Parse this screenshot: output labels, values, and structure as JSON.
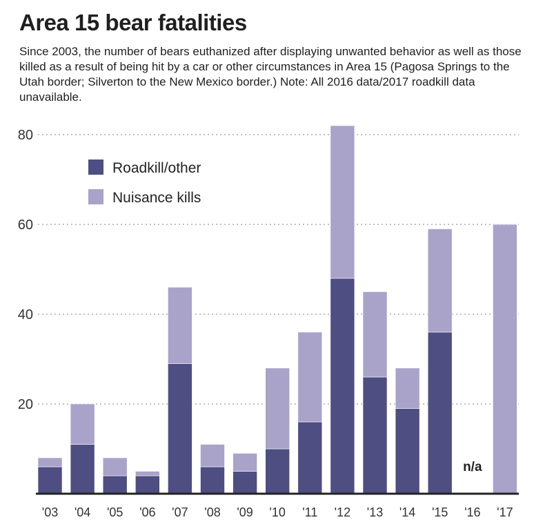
{
  "title": "Area 15 bear fatalities",
  "subtitle": "Since 2003, the number of bears euthanized after displaying unwanted behavior as well as those killed as a result of being hit by a car or other circumstances in Area 15 (Pagosa Springs to the Utah border; Silverton to the New Mexico border.) Note: All 2016 data/2017 roadkill data unavailable.",
  "chart_data": {
    "type": "bar",
    "stacked": true,
    "categories": [
      "'03",
      "'04",
      "'05",
      "'06",
      "'07",
      "'08",
      "'09",
      "'10",
      "'11",
      "'12",
      "'13",
      "'14",
      "'15",
      "'16",
      "'17"
    ],
    "series": [
      {
        "name": "Roadkill/other",
        "color": "#4e4e82",
        "values": [
          6,
          11,
          4,
          4,
          29,
          6,
          5,
          10,
          16,
          48,
          26,
          19,
          36,
          null,
          null
        ]
      },
      {
        "name": "Nuisance kills",
        "color": "#a9a2c9",
        "values": [
          2,
          9,
          4,
          1,
          17,
          5,
          4,
          18,
          20,
          34,
          19,
          9,
          23,
          null,
          60
        ]
      }
    ],
    "annotations": [
      {
        "category": "'16",
        "text": "n/a"
      }
    ],
    "yticks": [
      20,
      40,
      60,
      80
    ],
    "ylim": [
      0,
      84
    ],
    "grid": true,
    "legend_position": "top-left"
  }
}
